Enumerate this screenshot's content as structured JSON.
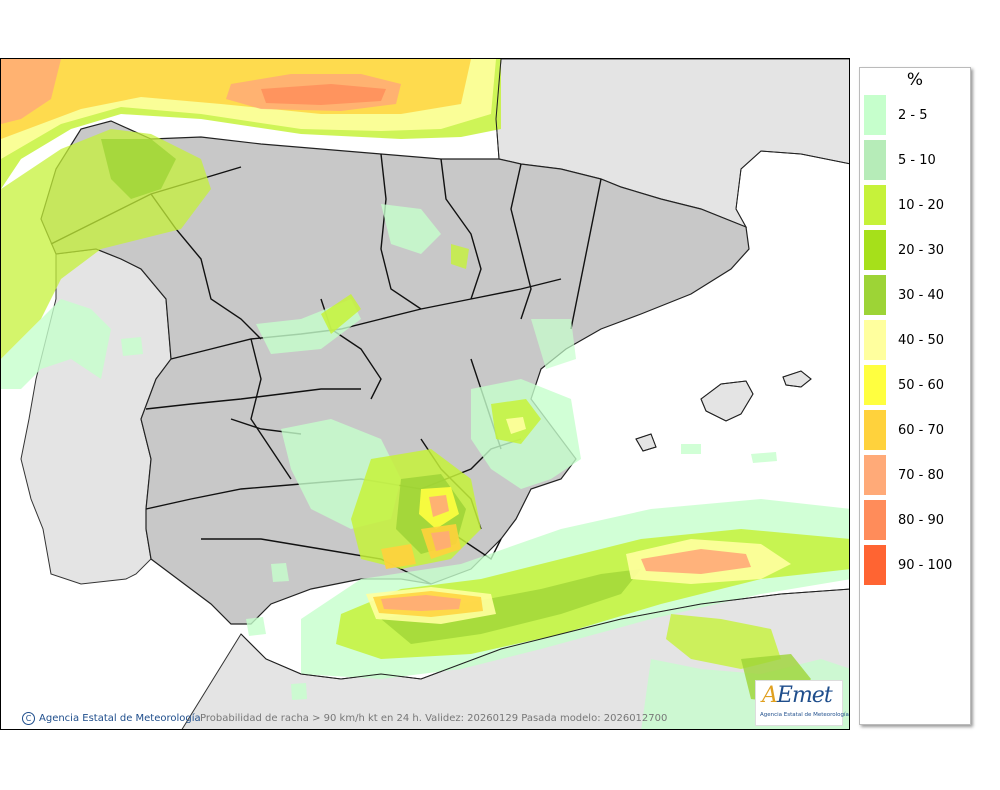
{
  "map": {
    "credit": "Agencia Estatal de Meteorología",
    "caption": "Probabilidad de racha > 90 km/h kt en 24 h. Validez: 20260129 Pasada modelo: 2026012700",
    "logo_text": "AEmet",
    "logo_subtitle": "Agencia Estatal de Meteorología",
    "colors": {
      "sea": "#ffffff",
      "land_outside": "#e4e4e4",
      "land_spain": "#c8c8c8",
      "border": "#000000"
    }
  },
  "legend": {
    "title": "%",
    "items": [
      {
        "label": "2 - 5",
        "color": "#c6ffcc"
      },
      {
        "label": "5 - 10",
        "color": "#b6ecb8"
      },
      {
        "label": "10 - 20",
        "color": "#c6f23a"
      },
      {
        "label": "20 - 30",
        "color": "#a6e01a"
      },
      {
        "label": "30 - 40",
        "color": "#9dd436"
      },
      {
        "label": "40 - 50",
        "color": "#ffff9e"
      },
      {
        "label": "50 - 60",
        "color": "#ffff40"
      },
      {
        "label": "60 - 70",
        "color": "#ffd23c"
      },
      {
        "label": "70 - 80",
        "color": "#ffaa78"
      },
      {
        "label": "80 - 90",
        "color": "#ff8c5a"
      },
      {
        "label": "90 - 100",
        "color": "#ff6432"
      }
    ]
  }
}
